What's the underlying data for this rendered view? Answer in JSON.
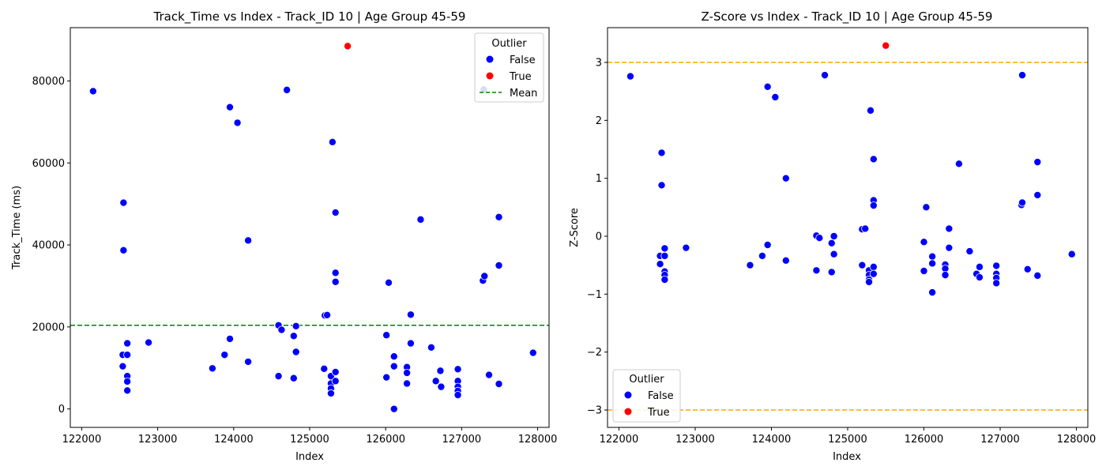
{
  "chart_data": [
    {
      "type": "scatter",
      "title": "Track_Time vs Index - Track_ID 10 | Age Group 45-59",
      "xlabel": "Index",
      "ylabel": "Track_Time (ms)",
      "xlim": [
        121850,
        128150
      ],
      "ylim": [
        -4500,
        93000
      ],
      "xticks": [
        122000,
        123000,
        124000,
        125000,
        126000,
        127000,
        128000
      ],
      "xtick_labels": [
        "122000",
        "123000",
        "124000",
        "125000",
        "126000",
        "127000",
        "128000"
      ],
      "yticks": [
        0,
        20000,
        40000,
        60000,
        80000
      ],
      "ytick_labels": [
        "0",
        "20000",
        "40000",
        "60000",
        "80000"
      ],
      "mean_line": {
        "y": 20400,
        "color": "#008000",
        "style": "dashed"
      },
      "legend": {
        "title": "Outlier",
        "placement": "top-right",
        "entries": [
          {
            "label": "False",
            "color": "#0000ff",
            "kind": "marker"
          },
          {
            "label": "True",
            "color": "#ff0000",
            "kind": "marker"
          },
          {
            "label": "Mean",
            "color": "#008000",
            "kind": "dashed-line"
          }
        ]
      },
      "series": [
        {
          "name": "False",
          "color": "#0000ff",
          "points": [
            [
              122150,
              77500
            ],
            [
              122550,
              50300
            ],
            [
              122550,
              38700
            ],
            [
              122540,
              13200
            ],
            [
              122540,
              10400
            ],
            [
              122600,
              16000
            ],
            [
              122600,
              13200
            ],
            [
              122600,
              8000
            ],
            [
              122600,
              6700
            ],
            [
              122600,
              4500
            ],
            [
              122880,
              16200
            ],
            [
              123720,
              9900
            ],
            [
              123880,
              13200
            ],
            [
              123950,
              73600
            ],
            [
              123950,
              17100
            ],
            [
              124050,
              69800
            ],
            [
              124190,
              41100
            ],
            [
              124190,
              11500
            ],
            [
              124590,
              20400
            ],
            [
              124590,
              8000
            ],
            [
              124630,
              19300
            ],
            [
              124700,
              77800
            ],
            [
              124790,
              17800
            ],
            [
              124790,
              7500
            ],
            [
              124820,
              20200
            ],
            [
              124820,
              13900
            ],
            [
              125190,
              9800
            ],
            [
              125200,
              22800
            ],
            [
              125230,
              22900
            ],
            [
              125280,
              8000
            ],
            [
              125280,
              6200
            ],
            [
              125280,
              5000
            ],
            [
              125280,
              3800
            ],
            [
              125300,
              65100
            ],
            [
              125340,
              47900
            ],
            [
              125340,
              33200
            ],
            [
              125340,
              31000
            ],
            [
              125340,
              9000
            ],
            [
              125340,
              6800
            ],
            [
              126010,
              18000
            ],
            [
              126010,
              7700
            ],
            [
              126040,
              30800
            ],
            [
              126110,
              12800
            ],
            [
              126110,
              10400
            ],
            [
              126110,
              0
            ],
            [
              126280,
              10200
            ],
            [
              126280,
              8800
            ],
            [
              126280,
              6200
            ],
            [
              126330,
              23000
            ],
            [
              126330,
              16000
            ],
            [
              126460,
              46200
            ],
            [
              126600,
              15000
            ],
            [
              126660,
              6800
            ],
            [
              126720,
              9300
            ],
            [
              126730,
              5400
            ],
            [
              126950,
              9700
            ],
            [
              126950,
              6800
            ],
            [
              126950,
              5400
            ],
            [
              126950,
              4400
            ],
            [
              126950,
              3400
            ],
            [
              127280,
              31300
            ],
            [
              127300,
              32400
            ],
            [
              127290,
              77900
            ],
            [
              127360,
              8300
            ],
            [
              127490,
              46800
            ],
            [
              127490,
              35000
            ],
            [
              127490,
              6100
            ],
            [
              127940,
              13700
            ]
          ]
        },
        {
          "name": "True",
          "color": "#ff0000",
          "points": [
            [
              125500,
              88500
            ]
          ]
        }
      ]
    },
    {
      "type": "scatter",
      "title": "Z-Score vs Index - Track_ID 10 | Age Group 45-59",
      "xlabel": "Index",
      "ylabel": "Z-Score",
      "xlim": [
        121850,
        128150
      ],
      "ylim": [
        -3.3,
        3.6
      ],
      "xticks": [
        122000,
        123000,
        124000,
        125000,
        126000,
        127000,
        128000
      ],
      "xtick_labels": [
        "122000",
        "123000",
        "124000",
        "125000",
        "126000",
        "127000",
        "128000"
      ],
      "yticks": [
        -3,
        -2,
        -1,
        0,
        1,
        2,
        3
      ],
      "ytick_labels": [
        "−3",
        "−2",
        "−1",
        "0",
        "1",
        "2",
        "3"
      ],
      "threshold_lines": [
        {
          "y": 3,
          "color": "#ffa500",
          "style": "dashed"
        },
        {
          "y": -3,
          "color": "#ffa500",
          "style": "dashed"
        }
      ],
      "legend": {
        "title": "Outlier",
        "placement": "bottom-left",
        "entries": [
          {
            "label": "False",
            "color": "#0000ff",
            "kind": "marker"
          },
          {
            "label": "True",
            "color": "#ff0000",
            "kind": "marker"
          }
        ]
      },
      "series": [
        {
          "name": "False",
          "color": "#0000ff",
          "points": [
            [
              122150,
              2.76
            ],
            [
              122560,
              1.44
            ],
            [
              122560,
              0.88
            ],
            [
              122540,
              -0.34
            ],
            [
              122540,
              -0.48
            ],
            [
              122600,
              -0.21
            ],
            [
              122600,
              -0.34
            ],
            [
              122600,
              -0.61
            ],
            [
              122600,
              -0.67
            ],
            [
              122600,
              -0.75
            ],
            [
              122880,
              -0.2
            ],
            [
              123720,
              -0.5
            ],
            [
              123880,
              -0.34
            ],
            [
              123950,
              2.58
            ],
            [
              123950,
              -0.15
            ],
            [
              124050,
              2.4
            ],
            [
              124190,
              1.0
            ],
            [
              124190,
              -0.42
            ],
            [
              124590,
              0.01
            ],
            [
              124590,
              -0.59
            ],
            [
              124630,
              -0.03
            ],
            [
              124700,
              2.78
            ],
            [
              124790,
              -0.12
            ],
            [
              124790,
              -0.62
            ],
            [
              124820,
              0.0
            ],
            [
              124820,
              -0.31
            ],
            [
              125190,
              0.12
            ],
            [
              125190,
              -0.5
            ],
            [
              125230,
              0.13
            ],
            [
              125280,
              -0.59
            ],
            [
              125280,
              -0.67
            ],
            [
              125280,
              -0.75
            ],
            [
              125280,
              -0.79
            ],
            [
              125300,
              2.17
            ],
            [
              125340,
              1.33
            ],
            [
              125340,
              0.62
            ],
            [
              125340,
              0.53
            ],
            [
              125340,
              -0.53
            ],
            [
              125340,
              -0.65
            ],
            [
              126000,
              -0.1
            ],
            [
              126000,
              -0.6
            ],
            [
              126030,
              0.5
            ],
            [
              126110,
              -0.35
            ],
            [
              126110,
              -0.47
            ],
            [
              126110,
              -0.97
            ],
            [
              126280,
              -0.49
            ],
            [
              126280,
              -0.56
            ],
            [
              126280,
              -0.67
            ],
            [
              126330,
              0.13
            ],
            [
              126330,
              -0.2
            ],
            [
              126460,
              1.25
            ],
            [
              126600,
              -0.26
            ],
            [
              126690,
              -0.65
            ],
            [
              126730,
              -0.53
            ],
            [
              126730,
              -0.71
            ],
            [
              126950,
              -0.51
            ],
            [
              126950,
              -0.65
            ],
            [
              126950,
              -0.72
            ],
            [
              126950,
              -0.81
            ],
            [
              127280,
              0.54
            ],
            [
              127290,
              0.58
            ],
            [
              127290,
              2.78
            ],
            [
              127360,
              -0.57
            ],
            [
              127490,
              1.28
            ],
            [
              127490,
              0.71
            ],
            [
              127490,
              -0.68
            ],
            [
              127940,
              -0.31
            ]
          ]
        },
        {
          "name": "True",
          "color": "#ff0000",
          "points": [
            [
              125500,
              3.29
            ]
          ]
        }
      ]
    }
  ]
}
